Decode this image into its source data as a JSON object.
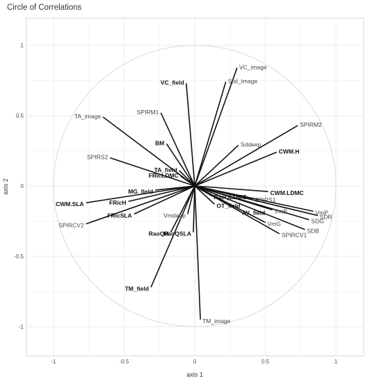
{
  "chart_data": {
    "type": "scatter",
    "title": "Circle of Correlations",
    "xlabel": "axis 1",
    "ylabel": "axis 2",
    "xlim": [
      -1.2,
      1.2
    ],
    "ylim": [
      -1.2,
      1.1
    ],
    "xticks": [
      "-1",
      "-0.5",
      "0",
      "0.5",
      "1"
    ],
    "yticks": [
      "1",
      "0.5",
      "0",
      "-0.5",
      "-1"
    ],
    "grid": true,
    "unit_circle": true,
    "vectors": [
      {
        "name": "VC_image",
        "x": 0.3,
        "y": 0.84,
        "bold": false
      },
      {
        "name": "Soil_Image",
        "x": 0.22,
        "y": 0.74,
        "bold": false
      },
      {
        "name": "VC_field",
        "x": -0.06,
        "y": 0.73,
        "bold": true
      },
      {
        "name": "SPIRM2",
        "x": 0.73,
        "y": 0.43,
        "bold": false
      },
      {
        "name": "SPIRM1",
        "x": -0.24,
        "y": 0.52,
        "bold": false
      },
      {
        "name": "TA_image",
        "x": -0.65,
        "y": 0.49,
        "bold": false
      },
      {
        "name": "Sddeep",
        "x": 0.31,
        "y": 0.29,
        "bold": false
      },
      {
        "name": "CWM.H",
        "x": 0.58,
        "y": 0.24,
        "bold": true
      },
      {
        "name": "BM",
        "x": -0.2,
        "y": 0.3,
        "bold": true
      },
      {
        "name": "SPIRS2",
        "x": -0.6,
        "y": 0.2,
        "bold": false
      },
      {
        "name": "TA_field",
        "x": -0.11,
        "y": 0.11,
        "bold": true
      },
      {
        "name": "FRicLDMC",
        "x": -0.1,
        "y": 0.07,
        "bold": true
      },
      {
        "name": "CWM.LDMC",
        "x": 0.52,
        "y": -0.04,
        "bold": true
      },
      {
        "name": "SPIRS1",
        "x": 0.41,
        "y": -0.09,
        "bold": false
      },
      {
        "name": "VmP",
        "x": 0.84,
        "y": -0.18,
        "bold": false
      },
      {
        "name": "SDR",
        "x": 0.87,
        "y": -0.21,
        "bold": false
      },
      {
        "name": "SDG",
        "x": 0.81,
        "y": -0.24,
        "bold": false
      },
      {
        "name": "VmG",
        "x": 0.5,
        "y": -0.26,
        "bold": false
      },
      {
        "name": "SDB",
        "x": 0.78,
        "y": -0.31,
        "bold": false
      },
      {
        "name": "SPIRCV1",
        "x": 0.6,
        "y": -0.34,
        "bold": false
      },
      {
        "name": "VmB",
        "x": 0.55,
        "y": -0.17,
        "bold": false
      },
      {
        "name": "RaoQLDMC",
        "x": 0.12,
        "y": -0.07,
        "bold": true
      },
      {
        "name": "OT_field",
        "x": 0.14,
        "y": -0.13,
        "bold": true
      },
      {
        "name": "AV_field",
        "x": 0.32,
        "y": -0.18,
        "bold": true
      },
      {
        "name": "MG_field",
        "x": -0.28,
        "y": -0.03,
        "bold": true
      },
      {
        "name": "CWM.SLA",
        "x": -0.77,
        "y": -0.12,
        "bold": true
      },
      {
        "name": "FRicH",
        "x": -0.47,
        "y": -0.11,
        "bold": true
      },
      {
        "name": "FRicSLA",
        "x": -0.43,
        "y": -0.2,
        "bold": true
      },
      {
        "name": "SPIRCV2",
        "x": -0.77,
        "y": -0.27,
        "bold": false
      },
      {
        "name": "Vmdeep",
        "x": -0.05,
        "y": -0.2,
        "bold": false
      },
      {
        "name": "RaoQH",
        "x": -0.17,
        "y": -0.33,
        "bold": true
      },
      {
        "name": "RaoQSLA",
        "x": -0.01,
        "y": -0.33,
        "bold": true
      },
      {
        "name": "TM_field",
        "x": -0.31,
        "y": -0.72,
        "bold": true
      },
      {
        "name": "TM_image",
        "x": 0.04,
        "y": -0.95,
        "bold": false
      }
    ]
  }
}
